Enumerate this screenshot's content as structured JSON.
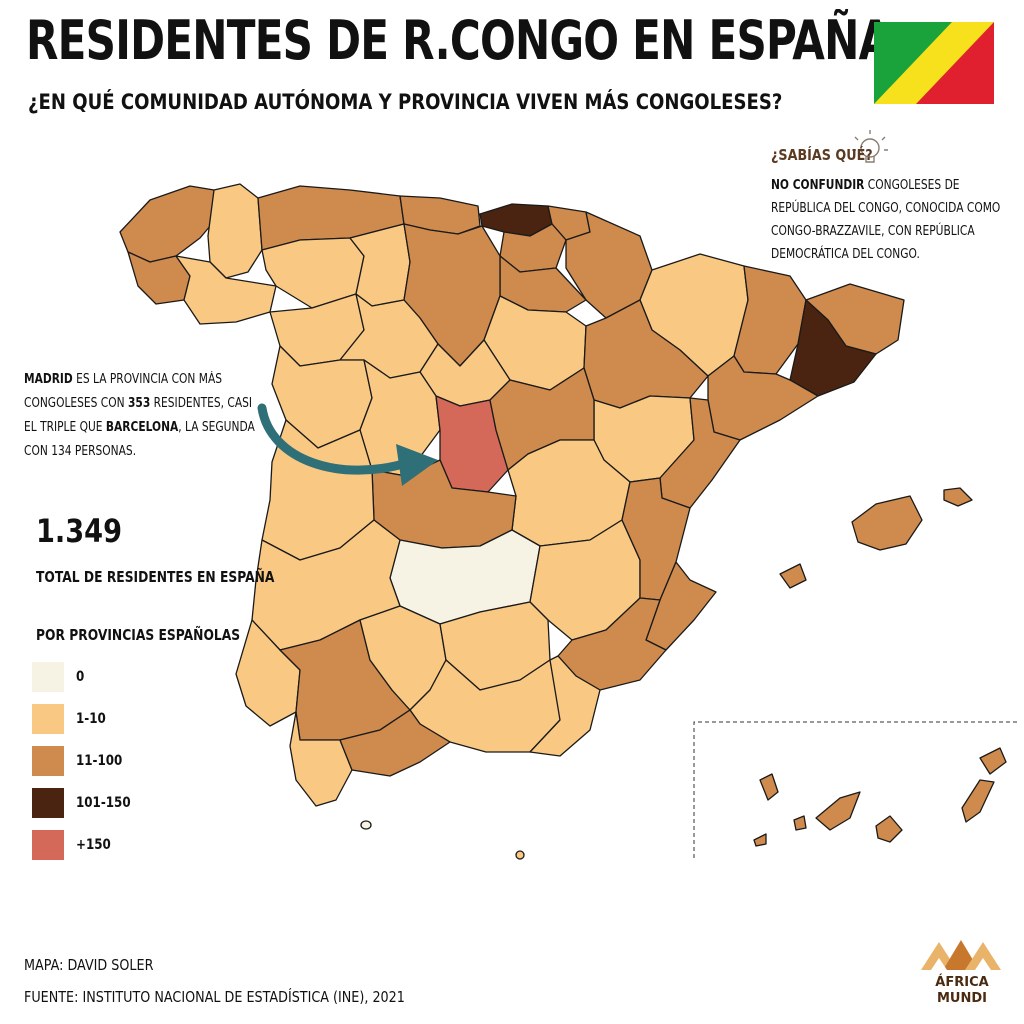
{
  "header": {
    "title": "RESIDENTES DE R.CONGO EN ESPAÑA",
    "subtitle": "¿EN QUÉ COMUNIDAD AUTÓNOMA Y PROVINCIA VIVEN MÁS CONGOLESES?"
  },
  "flag": {
    "colors": {
      "green": "#1aa33a",
      "yellow": "#f6e11c",
      "red": "#e0202f"
    }
  },
  "did_you_know": {
    "title": "¿SABÍAS QUÉ?",
    "bold": "NO CONFUNDIR",
    "text": " CONGOLESES DE REPÚBLICA DEL CONGO, CONOCIDA COMO CONGO-BRAZZAVILE, CON REPÚBLICA DEMOCRÁTICA DEL CONGO."
  },
  "madrid_note": {
    "b1": "MADRID",
    "t1": " ES LA PROVINCIA CON MÁS CONGOLESES CON ",
    "b2": "353",
    "t2": " RESIDENTES, CASI EL TRIPLE QUE ",
    "b3": "BARCELONA",
    "t3": ", LA SEGUNDA CON 134  PERSONAS."
  },
  "total": {
    "value": "1.349",
    "label": "TOTAL DE RESIDENTES EN ESPAÑA"
  },
  "legend": {
    "title": "POR PROVINCIAS ESPAÑOLAS",
    "items": [
      {
        "label": "0",
        "color": "#f6f2e4"
      },
      {
        "label": "1-10",
        "color": "#f9c983"
      },
      {
        "label": "11-100",
        "color": "#cf8a4d"
      },
      {
        "label": "101-150",
        "color": "#4a2410"
      },
      {
        "label": "+150",
        "color": "#d4695a"
      }
    ]
  },
  "colors": {
    "arrow": "#2f6f77",
    "border": "#1a1a1a"
  },
  "credits": {
    "map": "MAPA: DAVID SOLER",
    "source": "FUENTE: INSTITUTO NACIONAL DE ESTADÍSTICA (INE), 2021"
  },
  "logo": {
    "line1": "ÁFRICA",
    "line2": "MUNDI",
    "colors": {
      "light": "#e9b36a",
      "dark": "#c8782c"
    }
  }
}
